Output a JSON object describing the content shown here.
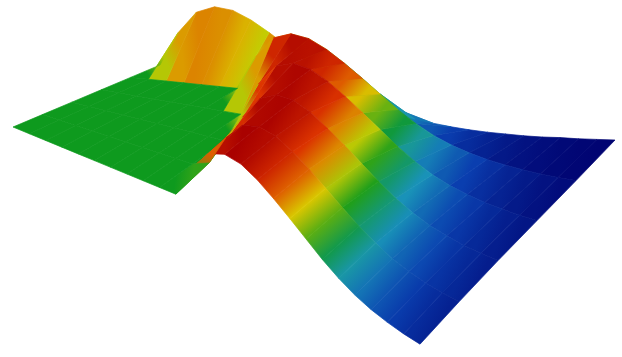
{
  "chart_data": {
    "type": "surface",
    "x": [
      0,
      1,
      2,
      3,
      4,
      5,
      6,
      7,
      8,
      9,
      10,
      11,
      12,
      13,
      14,
      15,
      16,
      17,
      18,
      19,
      20,
      21,
      22,
      23,
      24,
      25
    ],
    "y": [
      0,
      1,
      2,
      3,
      4,
      5
    ],
    "z": [
      [
        0,
        0,
        0,
        0,
        0,
        0,
        0,
        0,
        0,
        0,
        0,
        0.55,
        0.9,
        1.0,
        0.95,
        0.8,
        0.6,
        0.38,
        0.15,
        -0.08,
        -0.28,
        -0.45,
        -0.58,
        -0.68,
        -0.76,
        -0.82
      ],
      [
        0,
        0,
        0,
        0,
        0,
        0,
        0,
        0,
        0,
        0,
        0.11,
        0.62,
        0.92,
        0.99,
        0.92,
        0.76,
        0.56,
        0.33,
        0.1,
        -0.12,
        -0.31,
        -0.48,
        -0.6,
        -0.7,
        -0.77,
        -0.83
      ],
      [
        0,
        0,
        0,
        0,
        0,
        0,
        0,
        0,
        0,
        0,
        0.46,
        0.84,
        0.98,
        0.96,
        0.83,
        0.63,
        0.42,
        0.19,
        -0.04,
        -0.25,
        -0.42,
        -0.56,
        -0.66,
        -0.75,
        -0.81,
        -0.86
      ],
      [
        0,
        0,
        0,
        0,
        0,
        0,
        0,
        0,
        0,
        0.55,
        0.9,
        1.0,
        0.95,
        0.8,
        0.6,
        0.38,
        0.15,
        -0.08,
        -0.28,
        -0.45,
        -0.58,
        -0.68,
        -0.76,
        -0.82,
        -0.87,
        -0.91
      ],
      [
        0,
        0,
        0,
        0,
        0,
        0,
        0,
        0.55,
        0.9,
        1.0,
        0.95,
        0.8,
        0.6,
        0.38,
        0.15,
        -0.08,
        -0.28,
        -0.45,
        -0.58,
        -0.68,
        -0.76,
        -0.82,
        -0.87,
        -0.91,
        -0.94,
        -0.96
      ],
      [
        0,
        0.55,
        0.9,
        1.0,
        0.95,
        0.8,
        0.6,
        0.38,
        0.15,
        -0.08,
        -0.28,
        -0.45,
        -0.58,
        -0.68,
        -0.76,
        -0.82,
        -0.87,
        -0.91,
        -0.94,
        -0.96,
        -0.98,
        -0.99,
        -0.99,
        -1,
        -1,
        -1
      ]
    ],
    "xlim": [
      0,
      25
    ],
    "ylim": [
      0,
      5
    ],
    "zlim": [
      -1,
      1
    ]
  }
}
